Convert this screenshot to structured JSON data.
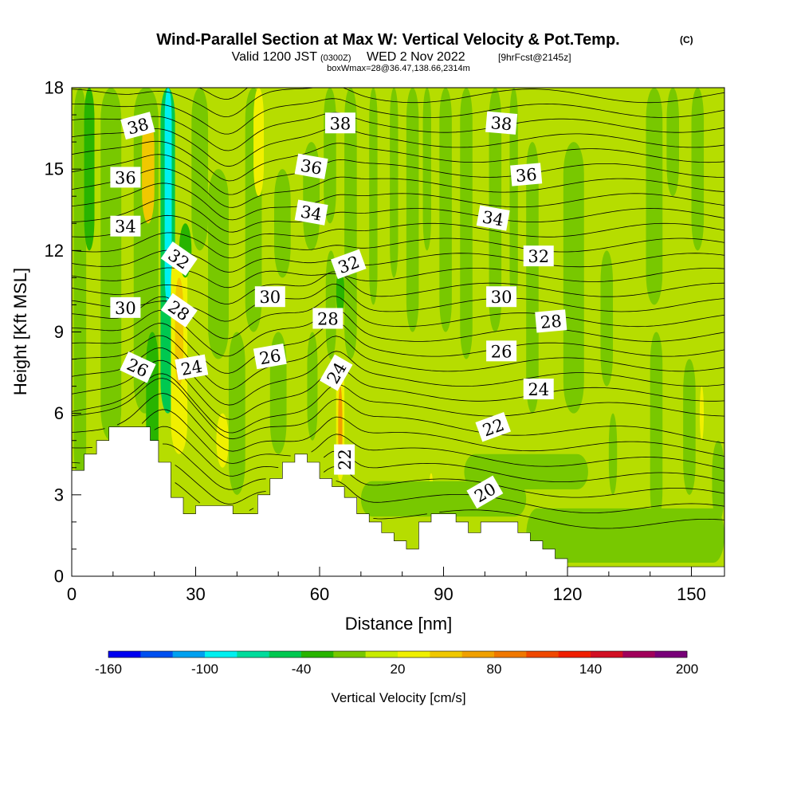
{
  "header": {
    "title": "Wind-Parallel Section at Max W: Vertical Velocity & Pot.Temp.",
    "title_mark": "(C)",
    "sub_a": "Valid 1200 JST",
    "sub_b": "(0300Z)",
    "sub_c": "WED 2 Nov 2022",
    "sub_d": "[9hrFcst@2145z]",
    "sub_e": "boxWmax=28@36.47,138.66,2314m"
  },
  "chart_data": {
    "type": "heatmap",
    "xlabel": "Distance [nm]",
    "ylabel": "Height [Kft MSL]",
    "xlim": [
      0,
      158
    ],
    "ylim": [
      0,
      18
    ],
    "x_ticks": [
      "0",
      "30",
      "60",
      "90",
      "120",
      "150"
    ],
    "x_tick_values": [
      0,
      30,
      60,
      90,
      120,
      150
    ],
    "y_ticks": [
      "0",
      "3",
      "6",
      "9",
      "12",
      "15",
      "18"
    ],
    "y_tick_values": [
      0,
      3,
      6,
      9,
      12,
      15,
      18
    ],
    "background_color": "#b6dd00",
    "colorbar": {
      "title": "Vertical Velocity [cm/s]",
      "labels": [
        "-160",
        "-100",
        "-40",
        "20",
        "80",
        "140",
        "200"
      ],
      "label_values": [
        -160,
        -100,
        -40,
        20,
        80,
        140,
        200
      ],
      "min": -160,
      "max": 200,
      "colors": [
        "#0000f0",
        "#0050f0",
        "#00a0f0",
        "#00f0f0",
        "#00dc9c",
        "#00c850",
        "#28b400",
        "#78c800",
        "#c8ec00",
        "#f0f000",
        "#f0c800",
        "#f0a000",
        "#f07800",
        "#f04800",
        "#f01e00",
        "#d20f23",
        "#a0005a",
        "#780078"
      ]
    },
    "velocity_bands": [
      {
        "x0": 0.5,
        "x1": 3.5,
        "y0": 3.5,
        "y1": 18,
        "color": "#78c800"
      },
      {
        "x0": 3,
        "x1": 5.5,
        "y0": 12,
        "y1": 18,
        "color": "#28b400"
      },
      {
        "x0": 7,
        "x1": 12,
        "y0": 5,
        "y1": 18,
        "color": "#78c800"
      },
      {
        "x0": 15,
        "x1": 21,
        "y0": 6,
        "y1": 18,
        "color": "#78c800"
      },
      {
        "x0": 17,
        "x1": 20,
        "y0": 13,
        "y1": 17,
        "color": "#f0c800"
      },
      {
        "x0": 18,
        "x1": 21,
        "y0": 3,
        "y1": 9,
        "color": "#28b400"
      },
      {
        "x0": 21.5,
        "x1": 25,
        "y0": 6,
        "y1": 18,
        "color": "#00c850"
      },
      {
        "x0": 22.5,
        "x1": 24.2,
        "y0": 10,
        "y1": 18,
        "color": "#00f0f0"
      },
      {
        "x0": 24,
        "x1": 28,
        "y0": 4.5,
        "y1": 12,
        "color": "#f0f000"
      },
      {
        "x0": 25,
        "x1": 27,
        "y0": 7,
        "y1": 11,
        "color": "#f0c800"
      },
      {
        "x0": 26,
        "x1": 29,
        "y0": 11,
        "y1": 13,
        "color": "#28b400"
      },
      {
        "x0": 29,
        "x1": 33,
        "y0": 12,
        "y1": 18,
        "color": "#78c800"
      },
      {
        "x0": 33,
        "x1": 38,
        "y0": 8,
        "y1": 15,
        "color": "#78c800"
      },
      {
        "x0": 35,
        "x1": 38,
        "y0": 4,
        "y1": 6,
        "color": "#f0f000"
      },
      {
        "x0": 38,
        "x1": 42,
        "y0": 3,
        "y1": 9,
        "color": "#78c800"
      },
      {
        "x0": 42,
        "x1": 46,
        "y0": 9,
        "y1": 18,
        "color": "#78c800"
      },
      {
        "x0": 44,
        "x1": 46.5,
        "y0": 14,
        "y1": 18,
        "color": "#f0f000"
      },
      {
        "x0": 48,
        "x1": 52,
        "y0": 4.5,
        "y1": 9,
        "color": "#78c800"
      },
      {
        "x0": 49,
        "x1": 53,
        "y0": 11,
        "y1": 15,
        "color": "#78c800"
      },
      {
        "x0": 56,
        "x1": 60,
        "y0": 12,
        "y1": 16,
        "color": "#78c800"
      },
      {
        "x0": 57,
        "x1": 59.5,
        "y0": 5,
        "y1": 9,
        "color": "#78c800"
      },
      {
        "x0": 61,
        "x1": 64,
        "y0": 13,
        "y1": 18,
        "color": "#78c800"
      },
      {
        "x0": 61.5,
        "x1": 64,
        "y0": 8,
        "y1": 12,
        "color": "#78c800"
      },
      {
        "x0": 64,
        "x1": 66,
        "y0": 3.5,
        "y1": 8,
        "color": "#f0f000"
      },
      {
        "x0": 64.5,
        "x1": 65.5,
        "y0": 4,
        "y1": 7,
        "color": "#f0a000"
      },
      {
        "x0": 64,
        "x1": 66,
        "y0": 9.5,
        "y1": 11.5,
        "color": "#28b400"
      },
      {
        "x0": 66,
        "x1": 69,
        "y0": 8,
        "y1": 18,
        "color": "#78c800"
      },
      {
        "x0": 72,
        "x1": 74,
        "y0": 10,
        "y1": 18,
        "color": "#78c800"
      },
      {
        "x0": 77,
        "x1": 79,
        "y0": 11,
        "y1": 18,
        "color": "#78c800"
      },
      {
        "x0": 81,
        "x1": 84,
        "y0": 9,
        "y1": 18,
        "color": "#78c800"
      },
      {
        "x0": 85,
        "x1": 87,
        "y0": 12,
        "y1": 18,
        "color": "#78c800"
      },
      {
        "x0": 86.5,
        "x1": 87.5,
        "y0": 2.5,
        "y1": 3.8,
        "color": "#f0f000"
      },
      {
        "x0": 89,
        "x1": 92,
        "y0": 9,
        "y1": 18,
        "color": "#78c800"
      },
      {
        "x0": 94,
        "x1": 97,
        "y0": 8,
        "y1": 18,
        "color": "#78c800"
      },
      {
        "x0": 101,
        "x1": 104,
        "y0": 9,
        "y1": 18,
        "color": "#78c800"
      },
      {
        "x0": 106,
        "x1": 108,
        "y0": 10,
        "y1": 18,
        "color": "#78c800"
      },
      {
        "x0": 110,
        "x1": 113,
        "y0": 6,
        "y1": 16,
        "color": "#78c800"
      },
      {
        "x0": 119,
        "x1": 124,
        "y0": 6,
        "y1": 16,
        "color": "#78c800"
      },
      {
        "x0": 128,
        "x1": 131,
        "y0": 7,
        "y1": 12,
        "color": "#78c800"
      },
      {
        "x0": 130,
        "x1": 132,
        "y0": 3,
        "y1": 6,
        "color": "#78c800"
      },
      {
        "x0": 139,
        "x1": 143,
        "y0": 10,
        "y1": 18,
        "color": "#78c800"
      },
      {
        "x0": 140,
        "x1": 143,
        "y0": 2,
        "y1": 9,
        "color": "#78c800"
      },
      {
        "x0": 144,
        "x1": 147,
        "y0": 14,
        "y1": 18,
        "color": "#78c800"
      },
      {
        "x0": 148,
        "x1": 151,
        "y0": 3,
        "y1": 8,
        "color": "#78c800"
      },
      {
        "x0": 150,
        "x1": 153,
        "y0": 12,
        "y1": 18,
        "color": "#78c800"
      },
      {
        "x0": 152,
        "x1": 153,
        "y0": 5,
        "y1": 7,
        "color": "#f0f000"
      },
      {
        "x0": 155,
        "x1": 158,
        "y0": 2,
        "y1": 5,
        "color": "#78c800"
      },
      {
        "x0": 110,
        "x1": 158,
        "y0": 0.5,
        "y1": 2.5,
        "color": "#78c800"
      },
      {
        "x0": 70,
        "x1": 110,
        "y0": 2.2,
        "y1": 3.5,
        "color": "#78c800"
      },
      {
        "x0": 95,
        "x1": 125,
        "y0": 3.2,
        "y1": 4.5,
        "color": "#78c800"
      }
    ],
    "terrain": [
      [
        0,
        3.9
      ],
      [
        3,
        3.9
      ],
      [
        3,
        4.5
      ],
      [
        6,
        4.5
      ],
      [
        6,
        5.0
      ],
      [
        9,
        5.0
      ],
      [
        9,
        5.5
      ],
      [
        19,
        5.5
      ],
      [
        19,
        5.0
      ],
      [
        21,
        5.0
      ],
      [
        21,
        4.2
      ],
      [
        24,
        4.2
      ],
      [
        24,
        2.9
      ],
      [
        27,
        2.9
      ],
      [
        27,
        2.3
      ],
      [
        30,
        2.3
      ],
      [
        30,
        2.6
      ],
      [
        39,
        2.6
      ],
      [
        39,
        2.3
      ],
      [
        45,
        2.3
      ],
      [
        45,
        3.0
      ],
      [
        48,
        3.0
      ],
      [
        48,
        3.6
      ],
      [
        51,
        3.6
      ],
      [
        51,
        4.2
      ],
      [
        54,
        4.2
      ],
      [
        54,
        4.5
      ],
      [
        57,
        4.5
      ],
      [
        57,
        4.2
      ],
      [
        60,
        4.2
      ],
      [
        60,
        3.6
      ],
      [
        63,
        3.6
      ],
      [
        63,
        3.3
      ],
      [
        66,
        3.3
      ],
      [
        66,
        2.9
      ],
      [
        69,
        2.9
      ],
      [
        69,
        2.3
      ],
      [
        72,
        2.3
      ],
      [
        72,
        2.0
      ],
      [
        75,
        2.0
      ],
      [
        75,
        1.6
      ],
      [
        78,
        1.6
      ],
      [
        78,
        1.3
      ],
      [
        81,
        1.3
      ],
      [
        81,
        1.0
      ],
      [
        84,
        1.0
      ],
      [
        84,
        2.0
      ],
      [
        87,
        2.0
      ],
      [
        87,
        2.3
      ],
      [
        93,
        2.3
      ],
      [
        93,
        2.0
      ],
      [
        96,
        2.0
      ],
      [
        96,
        1.6
      ],
      [
        99,
        1.6
      ],
      [
        99,
        2.0
      ],
      [
        108,
        2.0
      ],
      [
        108,
        1.6
      ],
      [
        111,
        1.6
      ],
      [
        111,
        1.3
      ],
      [
        114,
        1.3
      ],
      [
        114,
        1.0
      ],
      [
        117,
        1.0
      ],
      [
        117,
        0.65
      ],
      [
        120,
        0.65
      ],
      [
        120,
        0.35
      ],
      [
        158,
        0.35
      ],
      [
        158,
        0
      ],
      [
        0,
        0
      ]
    ],
    "theta_labels": [
      {
        "text": "38",
        "x": 16,
        "y": 16.6,
        "angle": -15
      },
      {
        "text": "38",
        "x": 65,
        "y": 16.7,
        "angle": 0
      },
      {
        "text": "38",
        "x": 104,
        "y": 16.7,
        "angle": 5
      },
      {
        "text": "36",
        "x": 13,
        "y": 14.7,
        "angle": 0
      },
      {
        "text": "36",
        "x": 58,
        "y": 15.1,
        "angle": 10
      },
      {
        "text": "36",
        "x": 110,
        "y": 14.8,
        "angle": -5
      },
      {
        "text": "34",
        "x": 13,
        "y": 12.9,
        "angle": 0
      },
      {
        "text": "34",
        "x": 58,
        "y": 13.4,
        "angle": 10
      },
      {
        "text": "34",
        "x": 102,
        "y": 13.2,
        "angle": 10
      },
      {
        "text": "32",
        "x": 26,
        "y": 11.7,
        "angle": 35
      },
      {
        "text": "32",
        "x": 67,
        "y": 11.5,
        "angle": -20
      },
      {
        "text": "32",
        "x": 113,
        "y": 11.8,
        "angle": 0
      },
      {
        "text": "30",
        "x": 13,
        "y": 9.9,
        "angle": 0
      },
      {
        "text": "30",
        "x": 48,
        "y": 10.3,
        "angle": 0
      },
      {
        "text": "30",
        "x": 104,
        "y": 10.3,
        "angle": 0
      },
      {
        "text": "28",
        "x": 26,
        "y": 9.8,
        "angle": 35
      },
      {
        "text": "28",
        "x": 62,
        "y": 9.5,
        "angle": 0
      },
      {
        "text": "28",
        "x": 116,
        "y": 9.4,
        "angle": -5
      },
      {
        "text": "26",
        "x": 16,
        "y": 7.7,
        "angle": 25
      },
      {
        "text": "26",
        "x": 48,
        "y": 8.1,
        "angle": -10
      },
      {
        "text": "26",
        "x": 104,
        "y": 8.3,
        "angle": 0
      },
      {
        "text": "24",
        "x": 29,
        "y": 7.7,
        "angle": -10
      },
      {
        "text": "24",
        "x": 64,
        "y": 7.5,
        "angle": -60
      },
      {
        "text": "24",
        "x": 113,
        "y": 6.9,
        "angle": 0
      },
      {
        "text": "22",
        "x": 66,
        "y": 4.3,
        "angle": -90
      },
      {
        "text": "22",
        "x": 102,
        "y": 5.5,
        "angle": -20
      },
      {
        "text": "20",
        "x": 100,
        "y": 3.1,
        "angle": -30
      }
    ]
  }
}
